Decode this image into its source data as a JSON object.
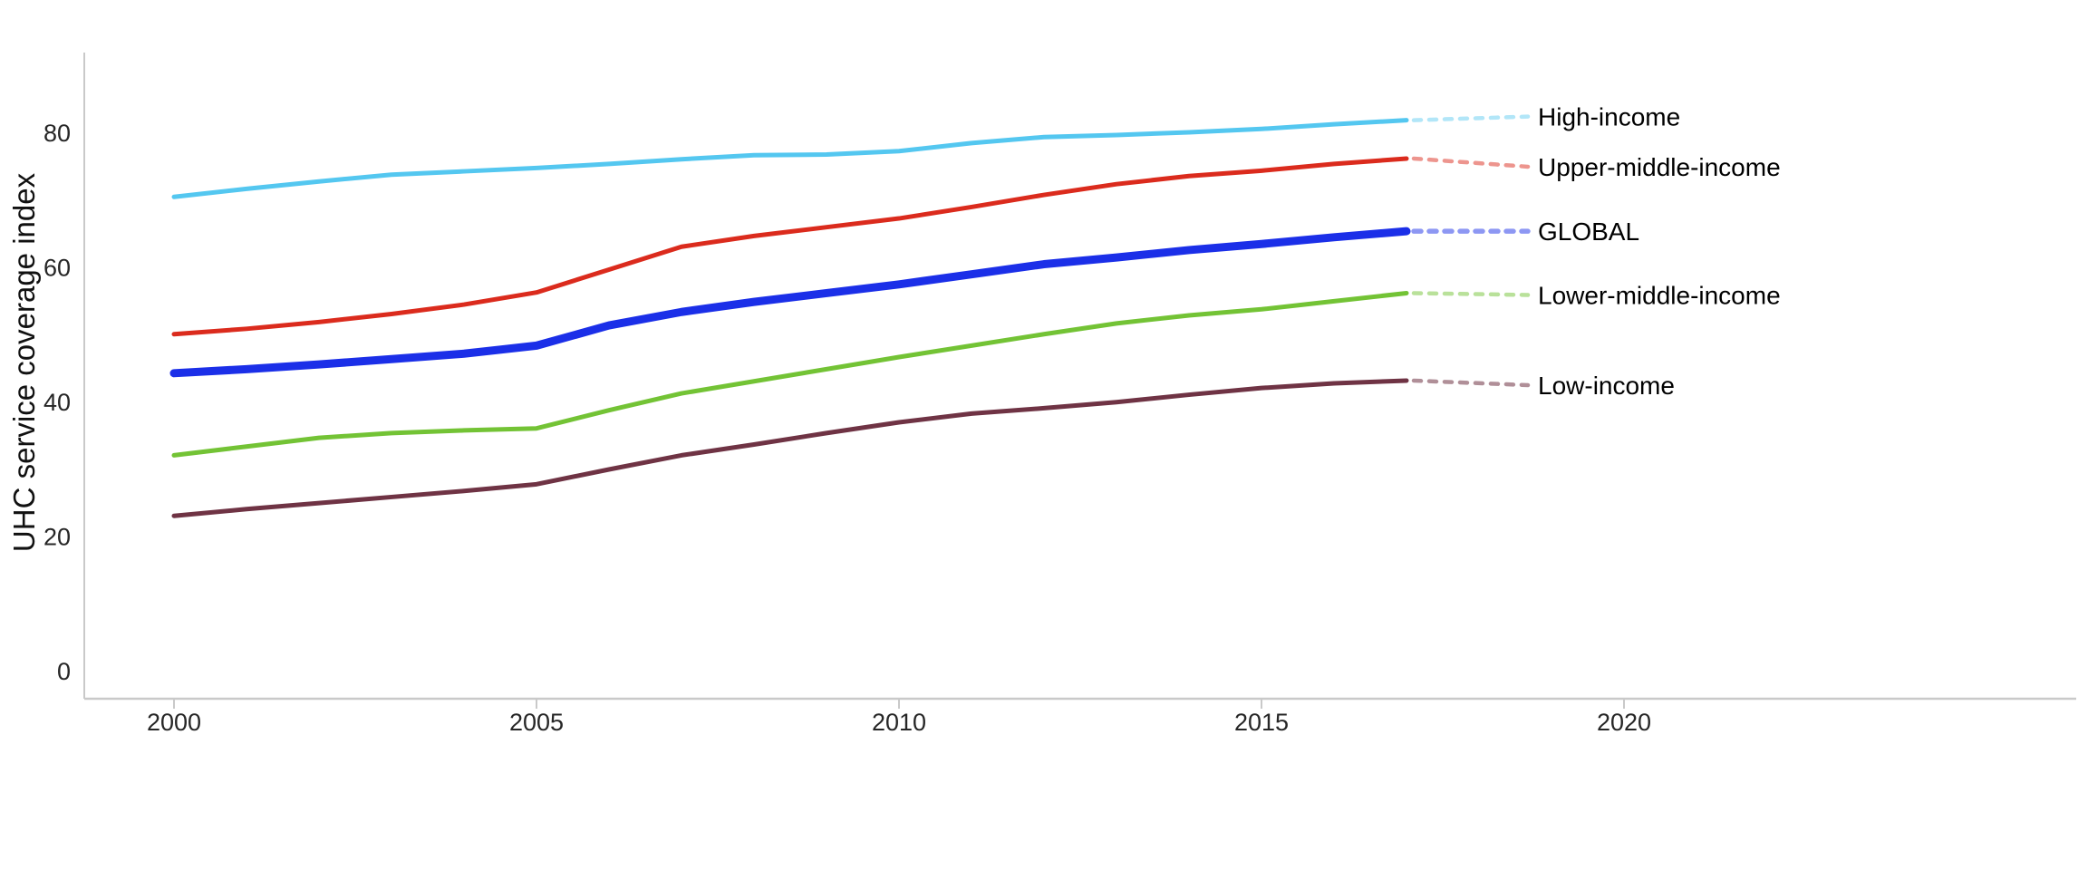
{
  "page": {
    "background_color": "#ffffff",
    "axis_color": "#c9c9c9",
    "tick_text_color": "#262626",
    "label_text_color": "#000000"
  },
  "chart_data": {
    "type": "line",
    "title": "",
    "xlabel": "",
    "ylabel": "UHC service coverage index",
    "x_tick_labels": [
      "2000",
      "2005",
      "2010",
      "2015",
      "2020"
    ],
    "x_tick_years": [
      2000,
      2005,
      2010,
      2015,
      2020
    ],
    "y_tick_labels": [
      "0",
      "20",
      "40",
      "60",
      "80"
    ],
    "y_ticks": [
      0,
      20,
      40,
      60,
      80
    ],
    "ylim": [
      0,
      92
    ],
    "xlim": [
      1998.8,
      2026.2
    ],
    "grid": "off",
    "legend_position": "right-inline-labels-with-dotted-leaders",
    "years": [
      2000,
      2001,
      2002,
      2003,
      2004,
      2005,
      2006,
      2007,
      2008,
      2009,
      2010,
      2011,
      2012,
      2013,
      2014,
      2015,
      2016,
      2017
    ],
    "series": [
      {
        "name": "High-income",
        "color": "#54c7f0",
        "dash_color_opacity": 0.45,
        "line_width": 5,
        "label_dy": -4,
        "values": [
          70.4,
          71.6,
          72.7,
          73.7,
          74.2,
          74.7,
          75.3,
          76.0,
          76.6,
          76.7,
          77.2,
          78.4,
          79.3,
          79.6,
          80.0,
          80.5,
          81.2,
          81.8
        ]
      },
      {
        "name": "Upper-middle-income",
        "color": "#db2b1d",
        "dash_color_opacity": 0.5,
        "line_width": 5,
        "label_dy": 9,
        "values": [
          50.0,
          50.8,
          51.8,
          53.0,
          54.4,
          56.2,
          59.6,
          63.0,
          64.6,
          65.9,
          67.2,
          68.9,
          70.7,
          72.3,
          73.5,
          74.3,
          75.3,
          76.1
        ]
      },
      {
        "name": "GLOBAL",
        "color": "#1b2fe8",
        "dash_color_opacity": 0.5,
        "line_width": 9,
        "label_dy": 0,
        "values": [
          44.2,
          44.8,
          45.5,
          46.3,
          47.1,
          48.3,
          51.3,
          53.3,
          54.8,
          56.1,
          57.4,
          58.9,
          60.4,
          61.4,
          62.5,
          63.4,
          64.4,
          65.3
        ]
      },
      {
        "name": "Lower-middle-income",
        "color": "#73c335",
        "dash_color_opacity": 0.5,
        "line_width": 5,
        "label_dy": 2,
        "values": [
          32.0,
          33.3,
          34.6,
          35.3,
          35.7,
          36.0,
          38.7,
          41.2,
          43.0,
          44.8,
          46.6,
          48.3,
          50.0,
          51.6,
          52.8,
          53.7,
          54.9,
          56.1
        ]
      },
      {
        "name": "Low-income",
        "color": "#6f3344",
        "dash_color_opacity": 0.55,
        "line_width": 5,
        "label_dy": 5,
        "values": [
          23.0,
          24.0,
          24.9,
          25.8,
          26.7,
          27.7,
          29.9,
          32.0,
          33.6,
          35.3,
          36.9,
          38.2,
          39.0,
          39.9,
          41.0,
          42.0,
          42.7,
          43.1
        ]
      }
    ]
  }
}
